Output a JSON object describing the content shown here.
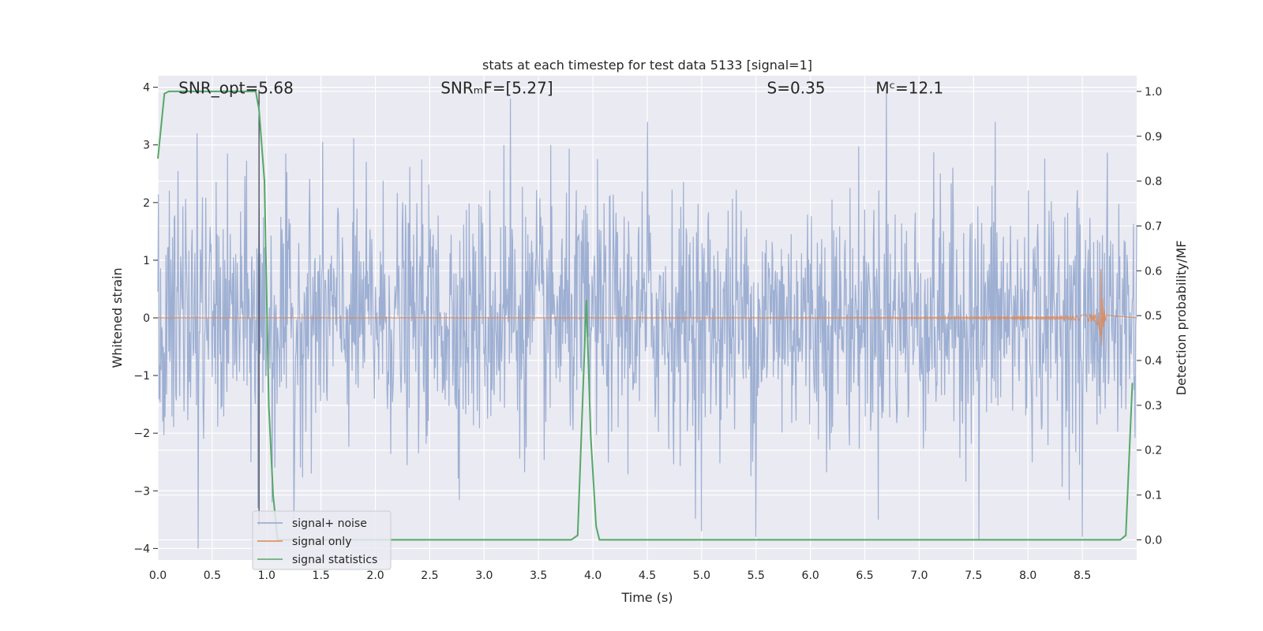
{
  "chart_data": {
    "type": "line",
    "title": "stats at each timestep for test data 5133 [signal=1]",
    "xlabel": "Time (s)",
    "ylabel": "Whitened strain",
    "y2label": "Detection probability/MF",
    "xlim": [
      0.0,
      9.0
    ],
    "ylim": [
      -4.2,
      4.2
    ],
    "y2lim": [
      -0.045,
      1.035
    ],
    "grid": true,
    "legend_position": "lower-left",
    "x_ticks": [
      "0.0",
      "0.5",
      "1.0",
      "1.5",
      "2.0",
      "2.5",
      "3.0",
      "3.5",
      "4.0",
      "4.5",
      "5.0",
      "5.5",
      "6.0",
      "6.5",
      "7.0",
      "7.5",
      "8.0",
      "8.5"
    ],
    "y_ticks": [
      "4",
      "3",
      "2",
      "1",
      "0",
      "−1",
      "−2",
      "−3",
      "−4"
    ],
    "y2_ticks": [
      "1.0",
      "0.9",
      "0.8",
      "0.7",
      "0.6",
      "0.5",
      "0.4",
      "0.3",
      "0.2",
      "0.1",
      "0.0"
    ],
    "annotations": [
      {
        "name": "snr-opt",
        "text": "SNR_opt=5.68",
        "x": 0.19,
        "y": 3.95
      },
      {
        "name": "snr-mf",
        "text": "SNRₘF=[5.27]",
        "x": 2.6,
        "y": 3.95
      },
      {
        "name": "s-value",
        "text": "S=0.35",
        "x": 5.6,
        "y": 3.95
      },
      {
        "name": "chirp-mass",
        "text": "Mᶜ=12.1",
        "x": 6.6,
        "y": 3.95
      }
    ],
    "vline_x": 0.93,
    "series": [
      {
        "name": "signal+ noise",
        "color": "#8fa4cd",
        "axis": "left",
        "kind": "noise",
        "std": 1.0,
        "spike_points": [
          [
            0.37,
            -4.0
          ],
          [
            0.36,
            3.2
          ],
          [
            0.93,
            1.9
          ],
          [
            0.92,
            -3.3
          ],
          [
            1.05,
            -3.2
          ],
          [
            1.25,
            -3.6
          ],
          [
            3.24,
            3.8
          ],
          [
            3.18,
            3.0
          ],
          [
            5.0,
            -3.7
          ],
          [
            5.5,
            -3.8
          ],
          [
            6.7,
            3.9
          ],
          [
            7.55,
            -3.85
          ],
          [
            8.5,
            -3.8
          ],
          [
            7.7,
            3.4
          ],
          [
            4.5,
            3.4
          ]
        ]
      },
      {
        "name": "signal only",
        "color": "#dd8452",
        "axis": "left",
        "kind": "chirp",
        "merger_time": 8.67,
        "peak_amplitude": 0.95
      },
      {
        "name": "signal statistics",
        "color": "#55a868",
        "axis": "right",
        "x": [
          0.0,
          0.06,
          0.1,
          0.9,
          0.93,
          0.98,
          1.02,
          1.06,
          1.1,
          3.8,
          3.86,
          3.94,
          3.98,
          4.03,
          4.06,
          8.85,
          8.9,
          8.96
        ],
        "values": [
          0.85,
          0.995,
          1.0,
          1.0,
          0.96,
          0.8,
          0.3,
          0.1,
          0.0,
          0.0,
          0.01,
          0.535,
          0.23,
          0.03,
          0.0,
          0.0,
          0.01,
          0.35
        ]
      }
    ]
  }
}
